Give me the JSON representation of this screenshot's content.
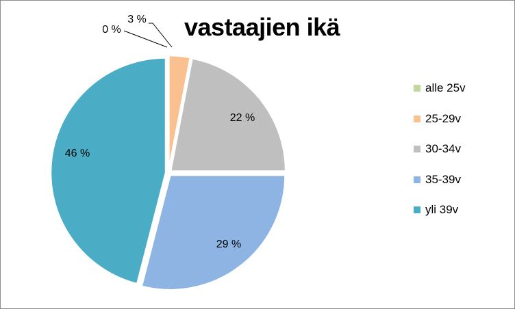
{
  "chart_data": {
    "type": "pie",
    "title": "vastaajien ikä",
    "categories": [
      "alle 25v",
      "25-29v",
      "30-34v",
      "35-39v",
      "yli 39v"
    ],
    "values": [
      0,
      3,
      22,
      29,
      46
    ],
    "data_labels": [
      "0 %",
      "3 %",
      "22 %",
      "29 %",
      "46 %"
    ],
    "colors": [
      "#c3d69b",
      "#fac090",
      "#bfbfbf",
      "#8eb4e3",
      "#4bacc6"
    ],
    "legend_position": "right",
    "exploded": true,
    "start_angle": "top",
    "direction": "clockwise"
  }
}
